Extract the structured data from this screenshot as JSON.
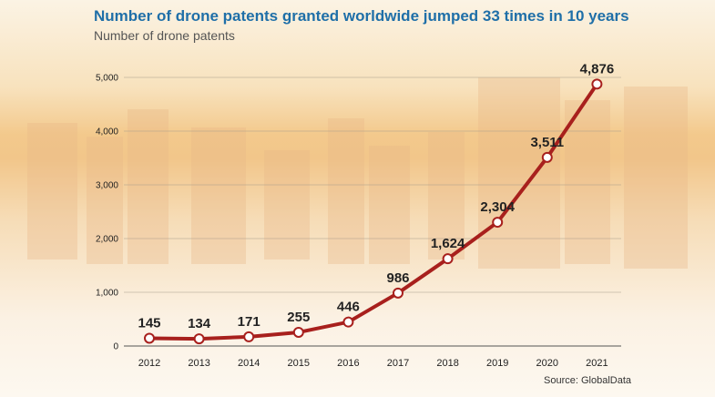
{
  "title": "Number of drone patents granted worldwide jumped 33 times in 10 years",
  "subtitle": "Number of drone patents",
  "source": "Source: GlobalData",
  "colors": {
    "title": "#1f6fa8",
    "line": "#a8201d",
    "marker_fill": "#ffffff"
  },
  "chart_data": {
    "type": "line",
    "title": "Number of drone patents granted worldwide jumped 33 times in 10 years",
    "subtitle": "Number of drone patents",
    "x": [
      "2012",
      "2013",
      "2014",
      "2015",
      "2016",
      "2017",
      "2018",
      "2019",
      "2020",
      "2021"
    ],
    "series": [
      {
        "values": [
          145,
          134,
          171,
          255,
          446,
          986,
          1624,
          2304,
          3511,
          4876
        ]
      }
    ],
    "data_labels": [
      "145",
      "134",
      "171",
      "255",
      "446",
      "986",
      "1,624",
      "2,304",
      "3,511",
      "4,876"
    ],
    "ylim": [
      0,
      5000
    ],
    "yticks": [
      0,
      1000,
      2000,
      3000,
      4000,
      5000
    ],
    "ytick_labels": [
      "0",
      "1,000",
      "2,000",
      "3,000",
      "4,000",
      "5,000"
    ],
    "grid": true,
    "legend": "none"
  }
}
